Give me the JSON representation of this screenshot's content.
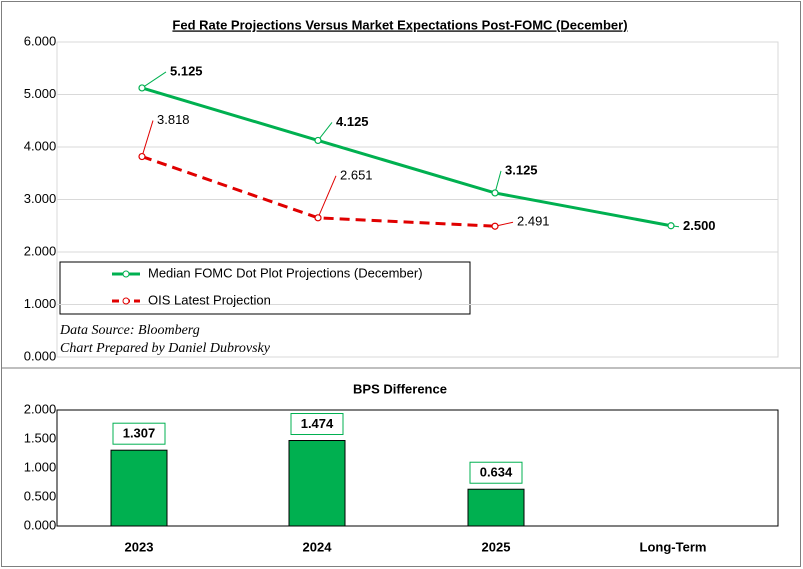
{
  "chart_data": [
    {
      "type": "line",
      "title": "Fed Rate Projections Versus Market Expectations Post-FOMC (December)",
      "series": [
        {
          "name": "Median FOMC Dot Plot Projections (December)",
          "color": "#00b050",
          "dash": false,
          "values": [
            5.125,
            4.125,
            3.125,
            2.5
          ],
          "value_labels": [
            "5.125",
            "4.125",
            "3.125",
            "2.500"
          ]
        },
        {
          "name": "OIS Latest Projection",
          "color": "#e00000",
          "dash": true,
          "values": [
            3.818,
            2.651,
            2.491,
            null
          ],
          "value_labels": [
            "3.818",
            "2.651",
            "2.491",
            null
          ]
        }
      ],
      "ylim": [
        0,
        6
      ],
      "yticks": [
        {
          "value": 0,
          "label": "0.000"
        },
        {
          "value": 1,
          "label": "1.000"
        },
        {
          "value": 2,
          "label": "2.000"
        },
        {
          "value": 3,
          "label": "3.000"
        },
        {
          "value": 4,
          "label": "4.000"
        },
        {
          "value": 5,
          "label": "5.000"
        },
        {
          "value": 6,
          "label": "6.000"
        }
      ],
      "grid": true,
      "legend": "lower left",
      "annotations": [
        "Data Source: Bloomberg",
        "Chart Prepared by Daniel Dubrovsky"
      ]
    },
    {
      "type": "bar",
      "title": "BPS Difference",
      "categories": [
        "2023",
        "2024",
        "2025",
        "Long-Term"
      ],
      "values": [
        1.307,
        1.474,
        0.634,
        null
      ],
      "color": "#00b050",
      "ylim": [
        0,
        2
      ],
      "yticks": [
        {
          "value": 0,
          "label": "0.000"
        },
        {
          "value": 0.5,
          "label": "0.500"
        },
        {
          "value": 1,
          "label": "1.000"
        },
        {
          "value": 1.5,
          "label": "1.500"
        },
        {
          "value": 2,
          "label": "2.000"
        }
      ],
      "grid": false
    }
  ]
}
